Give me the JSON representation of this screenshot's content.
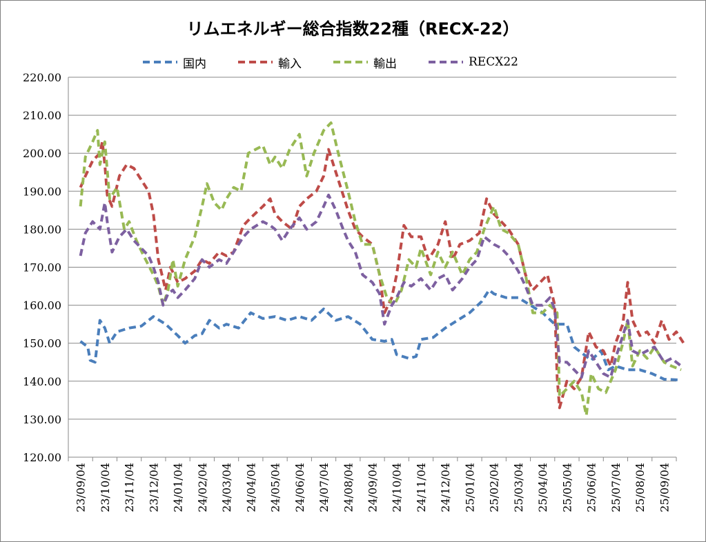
{
  "chart_data": {
    "type": "line",
    "title": "リムエネルギー総合指数22種（RECX-22）",
    "xlabel": "",
    "ylabel": "",
    "ylim": [
      120,
      220
    ],
    "yticks": [
      "120.00",
      "130.00",
      "140.00",
      "150.00",
      "160.00",
      "170.00",
      "180.00",
      "190.00",
      "200.00",
      "210.00",
      "220.00"
    ],
    "xtick_labels": [
      "23/09/04",
      "23/10/04",
      "23/11/04",
      "23/12/04",
      "24/01/04",
      "24/02/04",
      "24/03/04",
      "24/04/04",
      "24/05/04",
      "24/06/04",
      "24/07/04",
      "24/08/04",
      "24/09/04",
      "24/10/04",
      "24/11/04",
      "24/12/04",
      "25/01/04",
      "25/02/04",
      "25/03/04",
      "25/04/04",
      "25/05/04",
      "25/06/04",
      "25/07/04",
      "25/08/04",
      "25/09/04"
    ],
    "grid": "horizontal",
    "legend_position": "top",
    "line_style": "dashed",
    "series": [
      {
        "name": "国内",
        "color": "#4a7ebb",
        "points": [
          [
            0,
            150.5
          ],
          [
            0.3,
            149
          ],
          [
            0.4,
            145.5
          ],
          [
            0.6,
            145
          ],
          [
            0.8,
            156
          ],
          [
            1,
            154
          ],
          [
            1.2,
            150
          ],
          [
            1.5,
            153
          ],
          [
            2,
            154
          ],
          [
            2.5,
            154.5
          ],
          [
            3,
            157
          ],
          [
            3.5,
            155
          ],
          [
            4,
            152
          ],
          [
            4.3,
            150
          ],
          [
            4.7,
            152
          ],
          [
            5,
            152.5
          ],
          [
            5.3,
            156
          ],
          [
            5.7,
            154
          ],
          [
            6,
            155
          ],
          [
            6.5,
            154
          ],
          [
            7,
            158
          ],
          [
            7.5,
            156.5
          ],
          [
            8,
            157
          ],
          [
            8.5,
            156
          ],
          [
            9,
            157
          ],
          [
            9.5,
            156
          ],
          [
            10,
            159
          ],
          [
            10.5,
            156
          ],
          [
            11,
            157
          ],
          [
            11.5,
            155
          ],
          [
            12,
            151
          ],
          [
            12.5,
            150.5
          ],
          [
            12.8,
            151
          ],
          [
            13,
            147
          ],
          [
            13.5,
            146
          ],
          [
            13.8,
            146.5
          ],
          [
            14,
            151
          ],
          [
            14.5,
            151.5
          ],
          [
            15,
            154
          ],
          [
            15.5,
            156
          ],
          [
            16,
            158
          ],
          [
            16.5,
            161
          ],
          [
            16.8,
            164
          ],
          [
            17,
            163
          ],
          [
            17.5,
            162
          ],
          [
            18,
            162
          ],
          [
            18.5,
            160
          ],
          [
            19,
            158
          ],
          [
            19.5,
            155
          ],
          [
            20,
            155
          ],
          [
            20.3,
            149
          ],
          [
            20.7,
            147
          ],
          [
            21,
            145.5
          ],
          [
            21.4,
            148
          ],
          [
            21.7,
            143
          ],
          [
            22,
            144
          ],
          [
            22.5,
            143
          ],
          [
            23,
            143
          ],
          [
            23.5,
            142
          ],
          [
            24,
            140.5
          ],
          [
            24.7,
            140.3
          ]
        ]
      },
      {
        "name": "輸入",
        "color": "#be4b48",
        "points": [
          [
            0,
            191
          ],
          [
            0.2,
            194
          ],
          [
            0.5,
            198
          ],
          [
            0.8,
            200
          ],
          [
            0.9,
            203
          ],
          [
            1,
            197
          ],
          [
            1.1,
            189
          ],
          [
            1.3,
            186
          ],
          [
            1.6,
            194
          ],
          [
            1.9,
            197
          ],
          [
            2.2,
            196
          ],
          [
            2.5,
            193
          ],
          [
            2.8,
            190
          ],
          [
            3,
            184
          ],
          [
            3.2,
            172
          ],
          [
            3.5,
            164
          ],
          [
            3.7,
            170
          ],
          [
            4,
            166
          ],
          [
            4.3,
            167
          ],
          [
            4.7,
            169
          ],
          [
            5,
            172
          ],
          [
            5.3,
            171
          ],
          [
            5.7,
            174
          ],
          [
            6,
            173
          ],
          [
            6.3,
            174
          ],
          [
            6.7,
            181
          ],
          [
            7,
            183
          ],
          [
            7.5,
            186
          ],
          [
            7.8,
            188
          ],
          [
            8,
            184
          ],
          [
            8.3,
            182
          ],
          [
            8.7,
            180
          ],
          [
            9,
            186
          ],
          [
            9.3,
            188
          ],
          [
            9.7,
            190
          ],
          [
            10,
            194
          ],
          [
            10.2,
            201
          ],
          [
            10.4,
            197
          ],
          [
            10.7,
            191
          ],
          [
            11,
            185
          ],
          [
            11.3,
            180
          ],
          [
            11.6,
            178
          ],
          [
            12,
            176
          ],
          [
            12.3,
            168
          ],
          [
            12.5,
            158
          ],
          [
            12.8,
            162
          ],
          [
            13,
            168
          ],
          [
            13.3,
            181
          ],
          [
            13.6,
            178
          ],
          [
            14,
            178
          ],
          [
            14.3,
            172
          ],
          [
            14.7,
            176
          ],
          [
            15,
            182
          ],
          [
            15.3,
            172
          ],
          [
            15.6,
            176
          ],
          [
            16,
            177
          ],
          [
            16.4,
            179
          ],
          [
            16.7,
            188
          ],
          [
            17,
            184
          ],
          [
            17.3,
            182
          ],
          [
            17.6,
            180
          ],
          [
            18,
            176
          ],
          [
            18.3,
            168
          ],
          [
            18.6,
            164
          ],
          [
            18.9,
            166
          ],
          [
            19.2,
            168
          ],
          [
            19.5,
            160
          ],
          [
            19.6,
            141
          ],
          [
            19.7,
            133
          ],
          [
            20,
            140
          ],
          [
            20.3,
            138
          ],
          [
            20.6,
            141
          ],
          [
            20.9,
            153
          ],
          [
            21.2,
            149
          ],
          [
            21.5,
            148
          ],
          [
            21.8,
            144
          ],
          [
            22,
            150
          ],
          [
            22.3,
            155
          ],
          [
            22.5,
            166
          ],
          [
            22.7,
            156
          ],
          [
            23,
            152
          ],
          [
            23.3,
            153
          ],
          [
            23.6,
            150
          ],
          [
            23.9,
            156
          ],
          [
            24.2,
            151
          ],
          [
            24.5,
            153
          ],
          [
            24.8,
            150
          ]
        ]
      },
      {
        "name": "輸出",
        "color": "#98b954",
        "points": [
          [
            0,
            186
          ],
          [
            0.2,
            199
          ],
          [
            0.5,
            203
          ],
          [
            0.7,
            206
          ],
          [
            0.8,
            197
          ],
          [
            1,
            203
          ],
          [
            1.2,
            188
          ],
          [
            1.5,
            191
          ],
          [
            1.8,
            180
          ],
          [
            2,
            182
          ],
          [
            2.3,
            177
          ],
          [
            2.6,
            173
          ],
          [
            3,
            168
          ],
          [
            3.2,
            165
          ],
          [
            3.4,
            160
          ],
          [
            3.6,
            164
          ],
          [
            3.8,
            172
          ],
          [
            4,
            165
          ],
          [
            4.3,
            172
          ],
          [
            4.7,
            178
          ],
          [
            5,
            186
          ],
          [
            5.2,
            192
          ],
          [
            5.5,
            187
          ],
          [
            5.8,
            185
          ],
          [
            6,
            188
          ],
          [
            6.3,
            191
          ],
          [
            6.6,
            190
          ],
          [
            6.9,
            200
          ],
          [
            7.2,
            201
          ],
          [
            7.5,
            202
          ],
          [
            7.8,
            197
          ],
          [
            8,
            199
          ],
          [
            8.3,
            196
          ],
          [
            8.6,
            201
          ],
          [
            9,
            205
          ],
          [
            9.3,
            194
          ],
          [
            9.6,
            200
          ],
          [
            10,
            206
          ],
          [
            10.3,
            208
          ],
          [
            10.6,
            200
          ],
          [
            11,
            190
          ],
          [
            11.3,
            182
          ],
          [
            11.6,
            176
          ],
          [
            12,
            176
          ],
          [
            12.3,
            168
          ],
          [
            12.6,
            162
          ],
          [
            12.9,
            160
          ],
          [
            13.2,
            164
          ],
          [
            13.5,
            172
          ],
          [
            13.8,
            170
          ],
          [
            14,
            175
          ],
          [
            14.4,
            168
          ],
          [
            14.7,
            174
          ],
          [
            15,
            170
          ],
          [
            15.3,
            174
          ],
          [
            15.7,
            168
          ],
          [
            16,
            172
          ],
          [
            16.3,
            174
          ],
          [
            16.6,
            180
          ],
          [
            17,
            186
          ],
          [
            17.3,
            180
          ],
          [
            17.6,
            179
          ],
          [
            18,
            176
          ],
          [
            18.3,
            168
          ],
          [
            18.6,
            158
          ],
          [
            19,
            158
          ],
          [
            19.3,
            160
          ],
          [
            19.6,
            158
          ],
          [
            19.7,
            136
          ],
          [
            20,
            138
          ],
          [
            20.3,
            140
          ],
          [
            20.6,
            137
          ],
          [
            20.8,
            131
          ],
          [
            21,
            142
          ],
          [
            21.3,
            138
          ],
          [
            21.6,
            137
          ],
          [
            22,
            143
          ],
          [
            22.3,
            150
          ],
          [
            22.5,
            156
          ],
          [
            22.7,
            144
          ],
          [
            23,
            148
          ],
          [
            23.3,
            146
          ],
          [
            23.6,
            149
          ],
          [
            24,
            145
          ],
          [
            24.3,
            144
          ],
          [
            24.7,
            143
          ]
        ]
      },
      {
        "name": "RECX22",
        "color": "#7d60a0",
        "points": [
          [
            0,
            173
          ],
          [
            0.2,
            179
          ],
          [
            0.5,
            182
          ],
          [
            0.8,
            180
          ],
          [
            1,
            187
          ],
          [
            1.1,
            182
          ],
          [
            1.3,
            174
          ],
          [
            1.6,
            178
          ],
          [
            1.9,
            180
          ],
          [
            2.2,
            177
          ],
          [
            2.5,
            175
          ],
          [
            2.8,
            173
          ],
          [
            3,
            170
          ],
          [
            3.2,
            166
          ],
          [
            3.4,
            160
          ],
          [
            3.6,
            163
          ],
          [
            3.8,
            164
          ],
          [
            4,
            162
          ],
          [
            4.3,
            164
          ],
          [
            4.7,
            167
          ],
          [
            5,
            172
          ],
          [
            5.3,
            170
          ],
          [
            5.7,
            172
          ],
          [
            6,
            171
          ],
          [
            6.3,
            174
          ],
          [
            6.7,
            178
          ],
          [
            7,
            180
          ],
          [
            7.5,
            182
          ],
          [
            7.8,
            181
          ],
          [
            8,
            180
          ],
          [
            8.3,
            177
          ],
          [
            8.6,
            180
          ],
          [
            9,
            183
          ],
          [
            9.3,
            180
          ],
          [
            9.7,
            182
          ],
          [
            10,
            186
          ],
          [
            10.2,
            189
          ],
          [
            10.5,
            185
          ],
          [
            10.8,
            180
          ],
          [
            11,
            177
          ],
          [
            11.3,
            174
          ],
          [
            11.6,
            168
          ],
          [
            12,
            166
          ],
          [
            12.3,
            163
          ],
          [
            12.5,
            155
          ],
          [
            12.8,
            160
          ],
          [
            13,
            162
          ],
          [
            13.3,
            166
          ],
          [
            13.6,
            165
          ],
          [
            14,
            167
          ],
          [
            14.4,
            164
          ],
          [
            14.7,
            167
          ],
          [
            15,
            168
          ],
          [
            15.3,
            164
          ],
          [
            15.7,
            167
          ],
          [
            16,
            170
          ],
          [
            16.3,
            172
          ],
          [
            16.6,
            178
          ],
          [
            17,
            176
          ],
          [
            17.3,
            175
          ],
          [
            17.6,
            173
          ],
          [
            18,
            169
          ],
          [
            18.3,
            165
          ],
          [
            18.6,
            160
          ],
          [
            19,
            160
          ],
          [
            19.3,
            162
          ],
          [
            19.5,
            159
          ],
          [
            19.7,
            145
          ],
          [
            20,
            145
          ],
          [
            20.3,
            143
          ],
          [
            20.6,
            141
          ],
          [
            20.9,
            148
          ],
          [
            21.2,
            145
          ],
          [
            21.5,
            142
          ],
          [
            21.8,
            141
          ],
          [
            22,
            146
          ],
          [
            22.3,
            152
          ],
          [
            22.5,
            156
          ],
          [
            22.7,
            148
          ],
          [
            23,
            147
          ],
          [
            23.3,
            148
          ],
          [
            23.6,
            149
          ],
          [
            24,
            145
          ],
          [
            24.3,
            146
          ],
          [
            24.7,
            144
          ]
        ]
      }
    ]
  }
}
